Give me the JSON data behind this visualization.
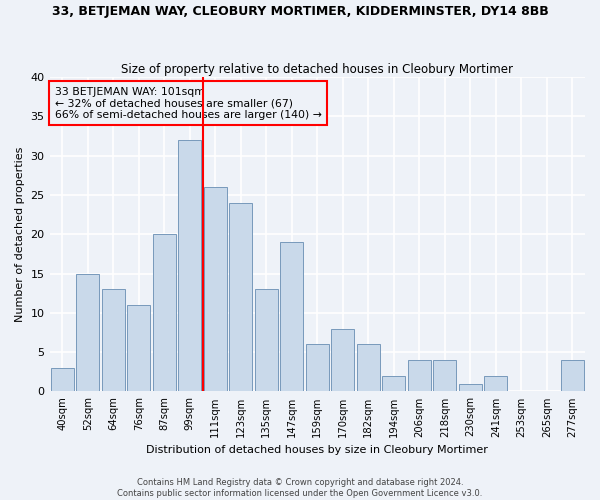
{
  "title": "33, BETJEMAN WAY, CLEOBURY MORTIMER, KIDDERMINSTER, DY14 8BB",
  "subtitle": "Size of property relative to detached houses in Cleobury Mortimer",
  "xlabel": "Distribution of detached houses by size in Cleobury Mortimer",
  "ylabel": "Number of detached properties",
  "bin_labels": [
    "40sqm",
    "52sqm",
    "64sqm",
    "76sqm",
    "87sqm",
    "99sqm",
    "111sqm",
    "123sqm",
    "135sqm",
    "147sqm",
    "159sqm",
    "170sqm",
    "182sqm",
    "194sqm",
    "206sqm",
    "218sqm",
    "230sqm",
    "241sqm",
    "253sqm",
    "265sqm",
    "277sqm"
  ],
  "bar_values": [
    3,
    15,
    13,
    11,
    20,
    32,
    26,
    24,
    13,
    19,
    6,
    8,
    6,
    2,
    4,
    4,
    1,
    2,
    0,
    0,
    4
  ],
  "bar_color": "#c9d9ea",
  "bar_edge_color": "#7799bb",
  "vline_bin_index": 6,
  "vline_color": "red",
  "annotation_text": "33 BETJEMAN WAY: 101sqm\n← 32% of detached houses are smaller (67)\n66% of semi-detached houses are larger (140) →",
  "annotation_box_edge": "red",
  "ylim": [
    0,
    40
  ],
  "yticks": [
    0,
    5,
    10,
    15,
    20,
    25,
    30,
    35,
    40
  ],
  "footer_line1": "Contains HM Land Registry data © Crown copyright and database right 2024.",
  "footer_line2": "Contains public sector information licensed under the Open Government Licence v3.0.",
  "bg_color": "#eef2f8",
  "grid_color": "white"
}
